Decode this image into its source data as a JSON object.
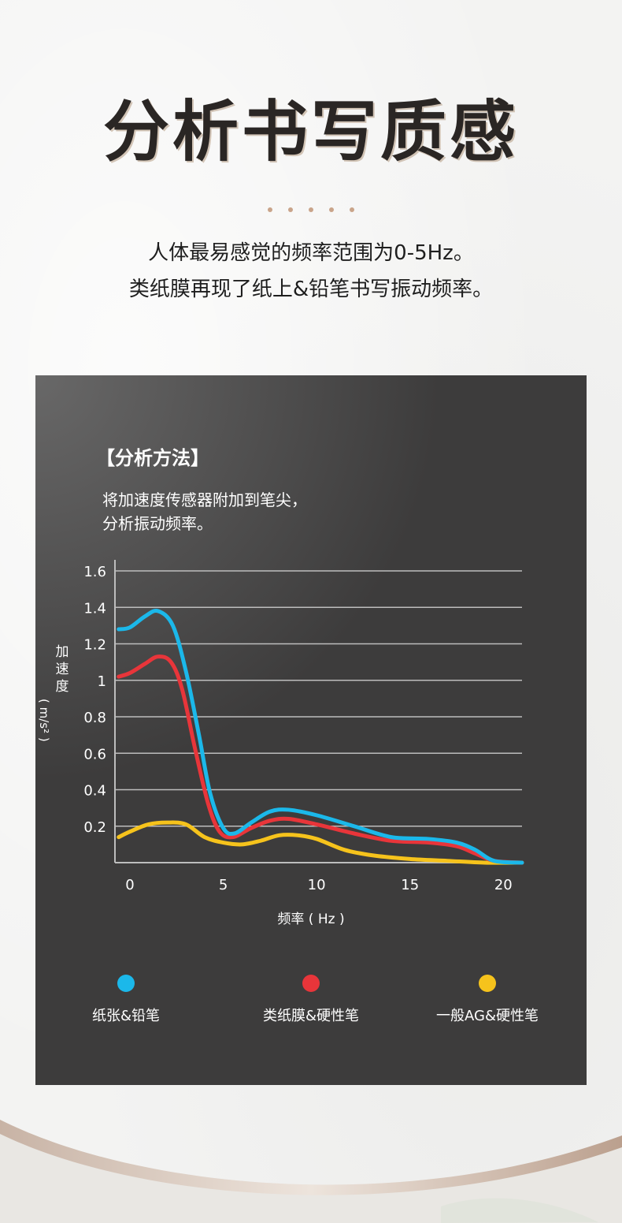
{
  "header": {
    "title": "分析书写质感",
    "subtitle_line1": "人体最易感觉的频率范围为0-5Hz。",
    "subtitle_line2": "类纸膜再现了纸上&铅笔书写振动频率。"
  },
  "panel": {
    "heading": "【分析方法】",
    "text_line1": "将加速度传感器附加到笔尖，",
    "text_line2": "分析振动频率。"
  },
  "colors": {
    "panel_bg": "#3d3c3c",
    "series_blue": "#1bb8ea",
    "series_red": "#e8353a",
    "series_yellow": "#f6c31c",
    "grid": "#bdbdbd"
  },
  "chart_data": {
    "type": "line",
    "ylabel": "加速度",
    "ylabel_unit": "( m/s² )",
    "xlabel": "频率 ( Hz )",
    "xlim": [
      -0.8,
      21
    ],
    "ylim": [
      0,
      1.6
    ],
    "x_ticks": [
      "0",
      "5",
      "10",
      "15",
      "20"
    ],
    "y_ticks": [
      "1.6",
      "1.4",
      "1.2",
      "1",
      "0.8",
      "0.6",
      "0.4",
      "0.2"
    ],
    "grid": true,
    "legend_position": "bottom",
    "series": [
      {
        "name": "纸张&铅笔",
        "color": "#1bb8ea",
        "points": [
          [
            -0.6,
            1.28
          ],
          [
            0,
            1.29
          ],
          [
            0.8,
            1.35
          ],
          [
            1.5,
            1.38
          ],
          [
            2.3,
            1.3
          ],
          [
            3.0,
            1.05
          ],
          [
            3.7,
            0.7
          ],
          [
            4.3,
            0.38
          ],
          [
            5.0,
            0.19
          ],
          [
            5.6,
            0.16
          ],
          [
            6.5,
            0.22
          ],
          [
            7.5,
            0.28
          ],
          [
            8.5,
            0.29
          ],
          [
            10,
            0.26
          ],
          [
            12,
            0.2
          ],
          [
            14,
            0.14
          ],
          [
            16,
            0.13
          ],
          [
            17.5,
            0.11
          ],
          [
            18.5,
            0.07
          ],
          [
            19.5,
            0.01
          ],
          [
            21,
            0
          ]
        ]
      },
      {
        "name": "类纸膜&硬性笔",
        "color": "#e8353a",
        "points": [
          [
            -0.6,
            1.02
          ],
          [
            0,
            1.04
          ],
          [
            0.8,
            1.09
          ],
          [
            1.5,
            1.13
          ],
          [
            2.2,
            1.1
          ],
          [
            2.8,
            0.95
          ],
          [
            3.5,
            0.62
          ],
          [
            4.2,
            0.32
          ],
          [
            4.8,
            0.17
          ],
          [
            5.5,
            0.14
          ],
          [
            6.5,
            0.19
          ],
          [
            7.5,
            0.23
          ],
          [
            8.5,
            0.24
          ],
          [
            10,
            0.21
          ],
          [
            12,
            0.16
          ],
          [
            14,
            0.12
          ],
          [
            16,
            0.11
          ],
          [
            17.5,
            0.09
          ],
          [
            18.5,
            0.05
          ],
          [
            19.5,
            0.01
          ],
          [
            21,
            0
          ]
        ]
      },
      {
        "name": "一般AG&硬性笔",
        "color": "#f6c31c",
        "points": [
          [
            -0.6,
            0.14
          ],
          [
            0,
            0.17
          ],
          [
            1,
            0.21
          ],
          [
            2,
            0.22
          ],
          [
            3,
            0.21
          ],
          [
            4,
            0.14
          ],
          [
            5,
            0.11
          ],
          [
            6,
            0.1
          ],
          [
            7,
            0.12
          ],
          [
            8,
            0.15
          ],
          [
            9,
            0.15
          ],
          [
            10,
            0.13
          ],
          [
            11.5,
            0.07
          ],
          [
            13,
            0.04
          ],
          [
            15,
            0.02
          ],
          [
            17,
            0.01
          ],
          [
            19,
            0.0
          ],
          [
            21,
            0.0
          ]
        ]
      }
    ]
  }
}
